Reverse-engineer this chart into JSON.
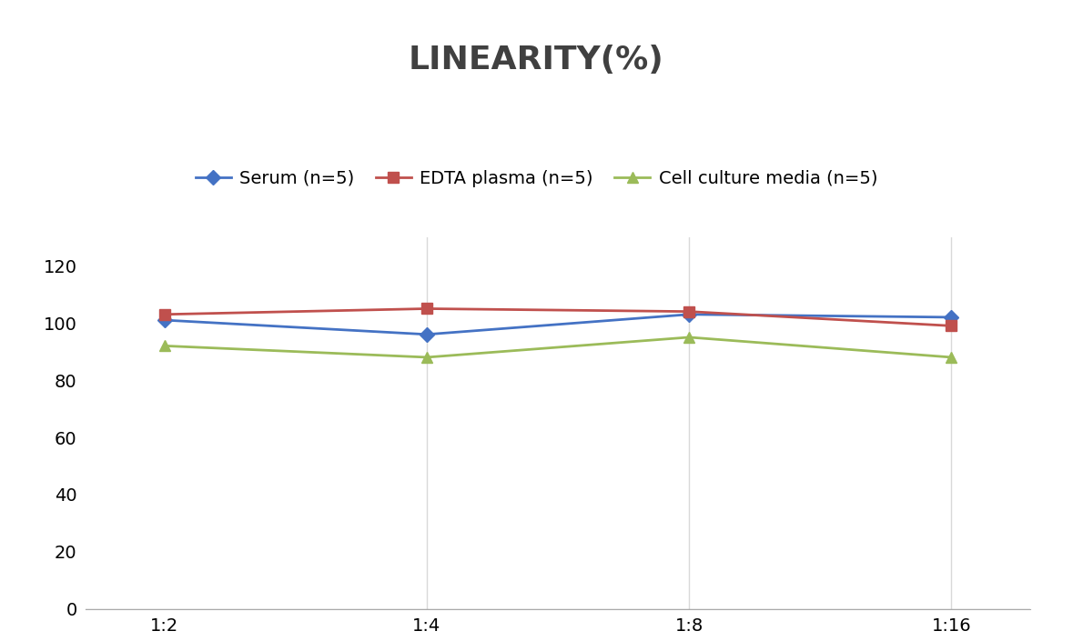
{
  "title": "LINEARITY(%)",
  "x_labels": [
    "1:2",
    "1:4",
    "1:8",
    "1:16"
  ],
  "x_positions": [
    0,
    1,
    2,
    3
  ],
  "series": [
    {
      "label": "Serum (n=5)",
      "values": [
        101,
        96,
        103,
        102
      ],
      "color": "#4472C4",
      "marker": "D",
      "marker_size": 8,
      "linewidth": 2.0
    },
    {
      "label": "EDTA plasma (n=5)",
      "values": [
        103,
        105,
        104,
        99
      ],
      "color": "#C0504D",
      "marker": "s",
      "marker_size": 8,
      "linewidth": 2.0
    },
    {
      "label": "Cell culture media (n=5)",
      "values": [
        92,
        88,
        95,
        88
      ],
      "color": "#9BBB59",
      "marker": "^",
      "marker_size": 8,
      "linewidth": 2.0
    }
  ],
  "ylim": [
    0,
    130
  ],
  "yticks": [
    0,
    20,
    40,
    60,
    80,
    100,
    120
  ],
  "grid_color": "#D9D9D9",
  "background_color": "#FFFFFF",
  "title_fontsize": 26,
  "tick_fontsize": 14,
  "legend_fontsize": 14
}
